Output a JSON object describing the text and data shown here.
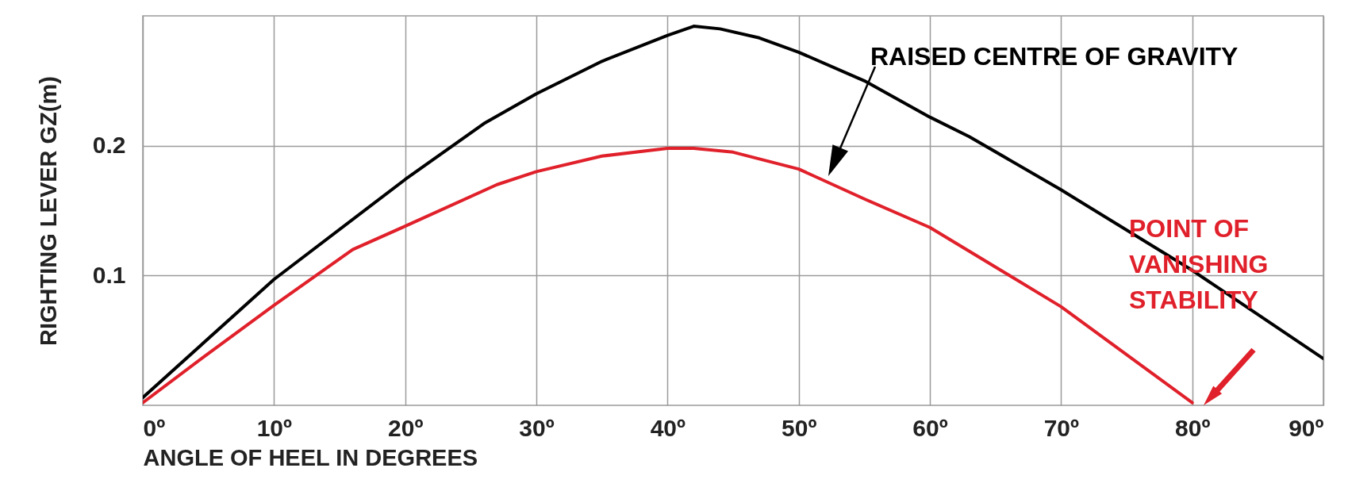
{
  "chart_data": {
    "type": "line",
    "xlabel": "ANGLE OF HEEL IN DEGREES",
    "ylabel": "RIGHTING LEVER GZ(m)",
    "xlim": [
      0,
      90
    ],
    "ylim": [
      0,
      0.3
    ],
    "xticks": [
      {
        "value": 0,
        "label": "0º"
      },
      {
        "value": 10,
        "label": "10º"
      },
      {
        "value": 20,
        "label": "20º"
      },
      {
        "value": 30,
        "label": "30º"
      },
      {
        "value": 40,
        "label": "40º"
      },
      {
        "value": 50,
        "label": "50º"
      },
      {
        "value": 60,
        "label": "60º"
      },
      {
        "value": 70,
        "label": "70º"
      },
      {
        "value": 80,
        "label": "80º"
      },
      {
        "value": 90,
        "label": "90º"
      }
    ],
    "yticks": [
      {
        "value": 0.1,
        "label": "0.1"
      },
      {
        "value": 0.2,
        "label": "0.2"
      }
    ],
    "grid": true,
    "marker": "none",
    "line_style": "solid",
    "series": [
      {
        "color": "#000000",
        "x": [
          0,
          10,
          20,
          26,
          30,
          35,
          40,
          42,
          44,
          47,
          50,
          55,
          60,
          63,
          70,
          80,
          90
        ],
        "values": [
          0.006,
          0.097,
          0.174,
          0.217,
          0.24,
          0.265,
          0.285,
          0.292,
          0.29,
          0.283,
          0.272,
          0.25,
          0.222,
          0.207,
          0.166,
          0.104,
          0.036
        ]
      },
      {
        "color": "#e0202a",
        "x": [
          0,
          5,
          10,
          16,
          20,
          27,
          30,
          35,
          40,
          42,
          45,
          50,
          55,
          60,
          70,
          80
        ],
        "values": [
          0.002,
          0.04,
          0.077,
          0.12,
          0.138,
          0.17,
          0.18,
          0.192,
          0.198,
          0.198,
          0.195,
          0.182,
          0.159,
          0.137,
          0.076,
          0.002
        ]
      }
    ],
    "annotations": [
      "RAISED CENTRE OF GRAVITY",
      "POINT OF\nVANISHING\nSTABILITY"
    ]
  }
}
